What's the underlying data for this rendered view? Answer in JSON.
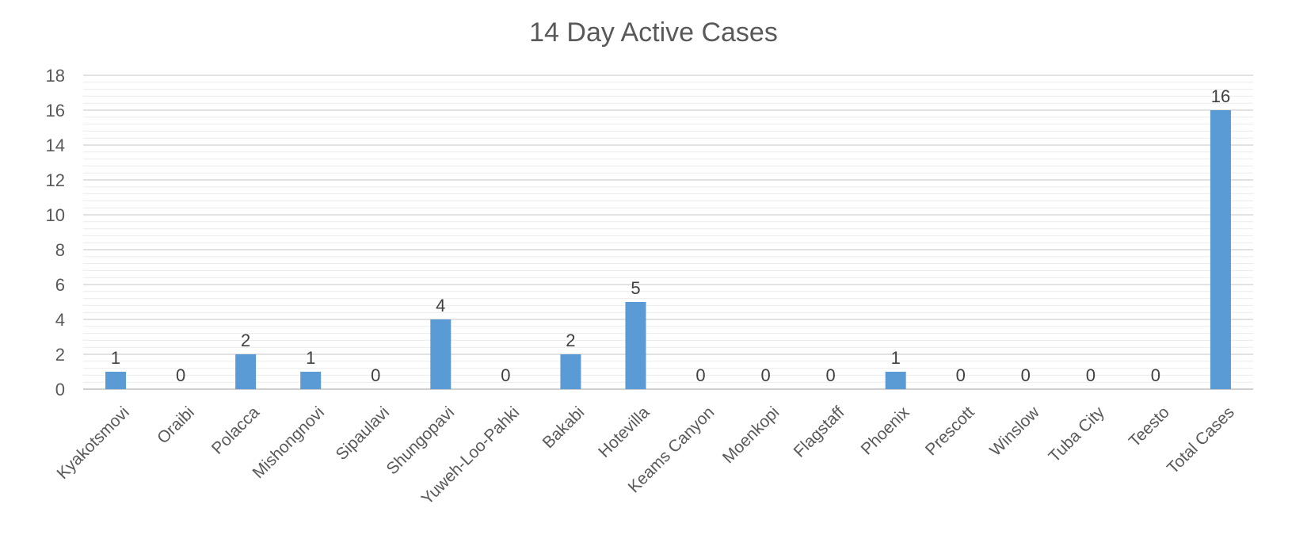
{
  "chart_data": {
    "type": "bar",
    "title": "14 Day Active Cases",
    "xlabel": "",
    "ylabel": "",
    "categories": [
      "Kyakotsmovi",
      "Oraibi",
      "Polacca",
      "Mishongnovi",
      "Sipaulavi",
      "Shungopavi",
      "Yuweh-Loo-Pahki",
      "Bakabi",
      "Hotevilla",
      "Keams Canyon",
      "Moenkopi",
      "Flagstaff",
      "Phoenix",
      "Prescott",
      "Winslow",
      "Tuba City",
      "Teesto",
      "Total Cases"
    ],
    "values": [
      1,
      0,
      2,
      1,
      0,
      4,
      0,
      2,
      5,
      0,
      0,
      0,
      1,
      0,
      0,
      0,
      0,
      16
    ],
    "ylim": [
      0,
      18
    ],
    "yticks": [
      0,
      2,
      4,
      6,
      8,
      10,
      12,
      14,
      16,
      18
    ],
    "data_labels": true,
    "grid": true,
    "legend": "none",
    "colors": {
      "bar": "#5B9BD5",
      "major_grid": "#d9d9d9",
      "minor_grid": "#ececec",
      "text": "#595959"
    }
  }
}
